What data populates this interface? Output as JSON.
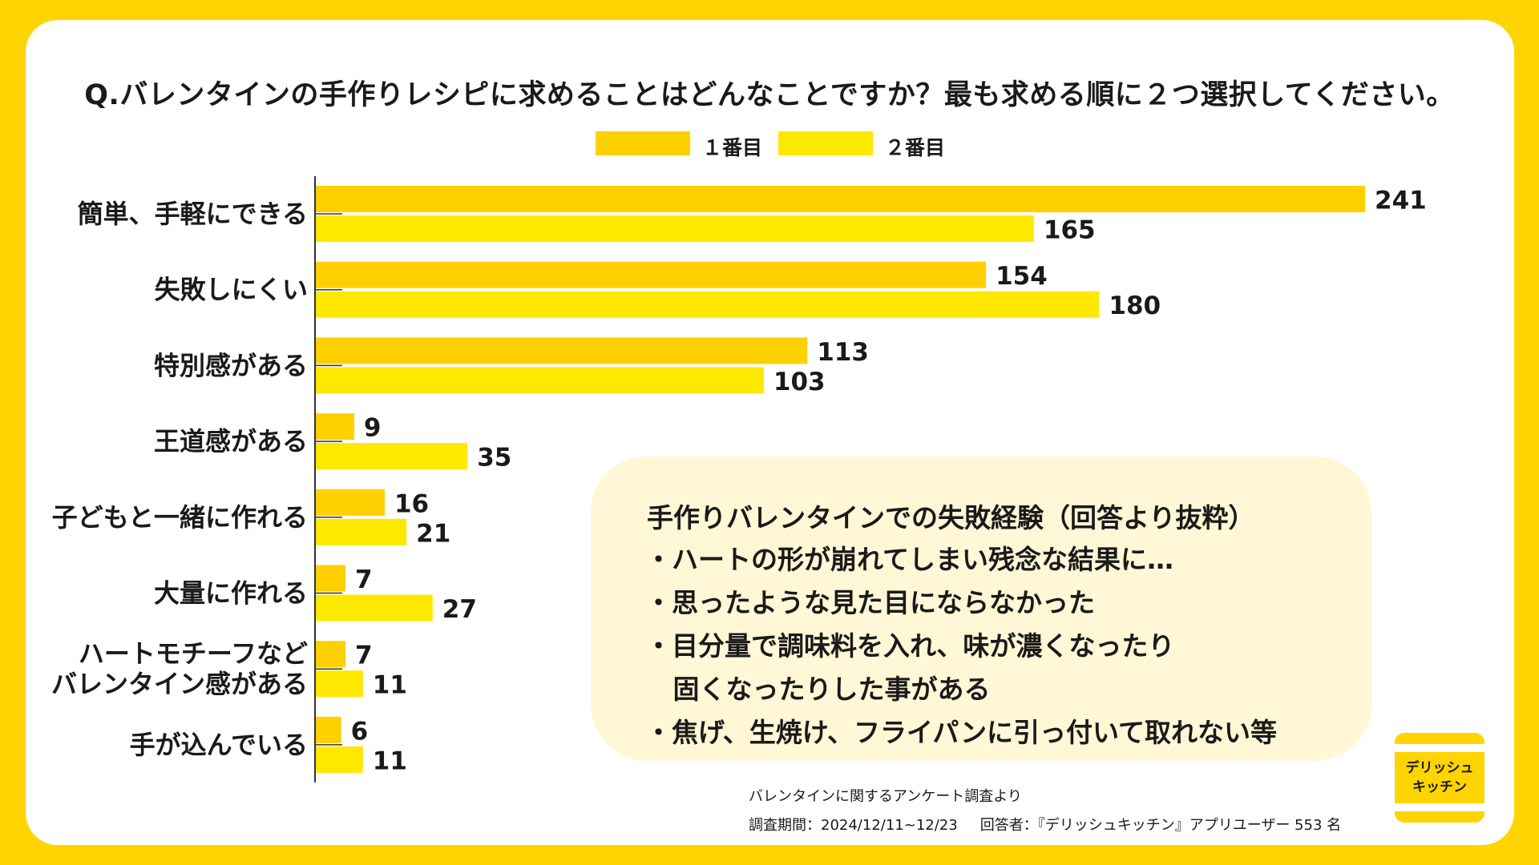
{
  "title": "Q.バレンタインの手作りレシピに求めることはどんなことですか？最も求める順に２つ選択してください。",
  "colors": {
    "series1": "#FFD000",
    "series2": "#FFE800",
    "axis": "#333333",
    "background": "#FFD400",
    "note_bg": "#FFF7D6"
  },
  "chart_data": {
    "type": "bar",
    "orientation": "horizontal",
    "categories": [
      "簡単、手軽にできる",
      "失敗しにくい",
      "特別感がある",
      "王道感がある",
      "子どもと一緒に作れる",
      "大量に作れる",
      "ハートモチーフなど\nバレンタイン感がある",
      "手が込んでいる"
    ],
    "series": [
      {
        "name": "１番目",
        "values": [
          241,
          154,
          113,
          9,
          16,
          7,
          7,
          6
        ]
      },
      {
        "name": "２番目",
        "values": [
          165,
          180,
          103,
          35,
          21,
          27,
          11,
          11
        ]
      }
    ],
    "xlim": [
      0,
      241
    ],
    "title": "Q.バレンタインの手作りレシピに求めることはどんなことですか？最も求める順に２つ選択してください。",
    "legend_position": "top-center",
    "grid": false
  },
  "legend": {
    "series1_label": "１番目",
    "series2_label": "２番目"
  },
  "note": {
    "title": "手作りバレンタインでの失敗経験（回答より抜粋）",
    "items": [
      "・ハートの形が崩れてしまい残念な結果に…",
      "・思ったような見た目にならなかった",
      "・目分量で調味料を入れ、味が濃くなったり",
      "   固くなったりした事がある",
      "・焦げ、生焼け、フライパンに引っ付いて取れない等"
    ]
  },
  "footer": {
    "source": "バレンタインに関するアンケート調査より",
    "period": "調査期間：2024/12/11~12/23",
    "respondents": "回答者：『デリッシュキッチン』アプリユーザー 553 名"
  },
  "logo": {
    "text": "デリッシュ\nキッチン"
  }
}
